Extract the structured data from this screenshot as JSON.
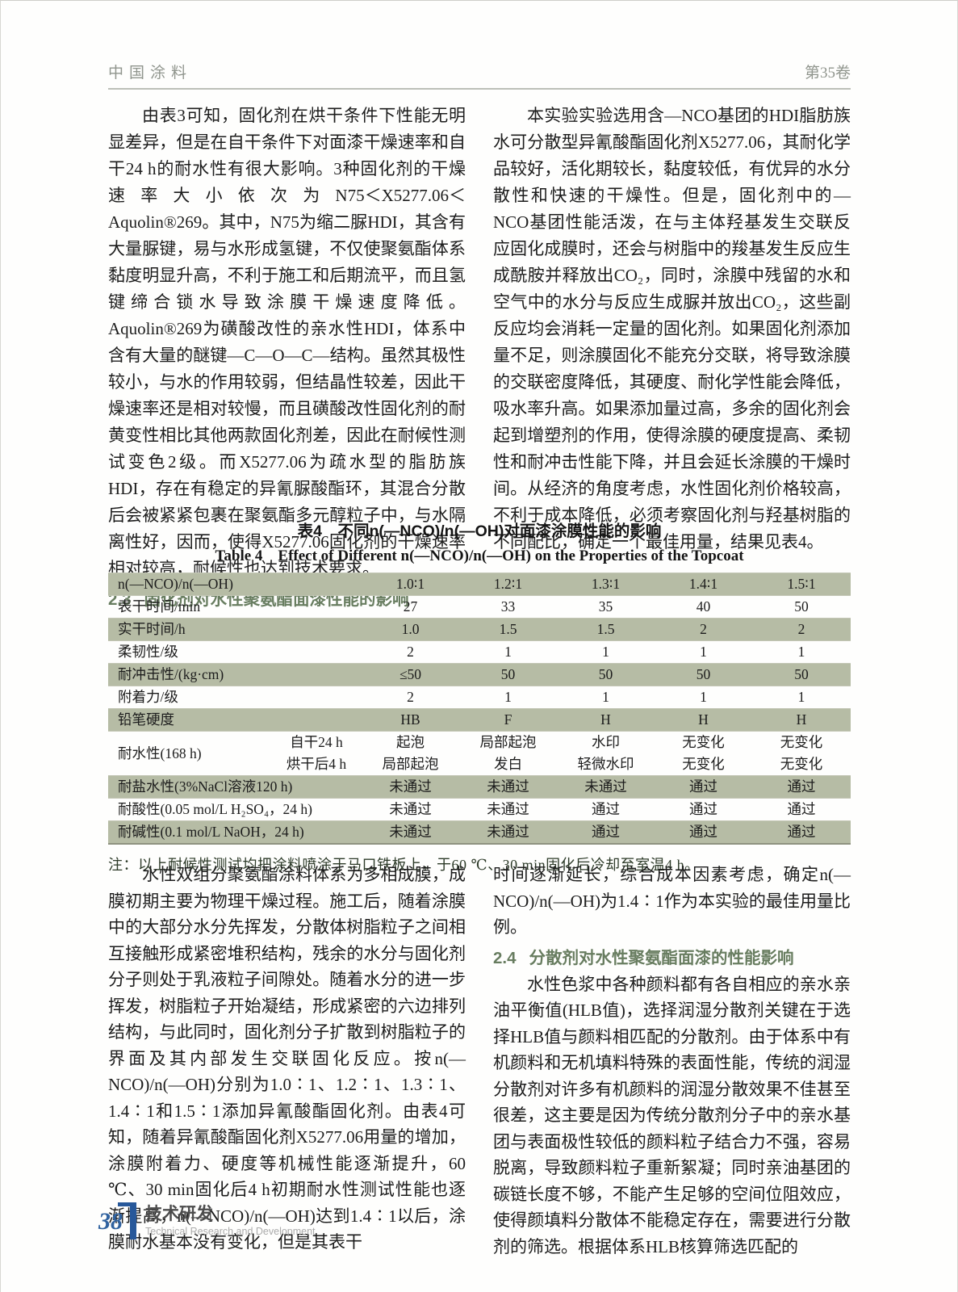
{
  "header": {
    "journal": "中国涂料",
    "volume": "第35卷"
  },
  "top_left": {
    "para": "由表3可知，固化剂在烘干条件下性能无明显差异，但是在自干条件下对面漆干燥速率和自干24 h的耐水性有很大影响。3种固化剂的干燥速率大小依次为N75＜X5277.06＜Aquolin®269。其中，N75为缩二脲HDI，其含有大量脲键，易与水形成氢键，不仅使聚氨酯体系黏度明显升高，不利于施工和后期流平，而且氢键缔合锁水导致涂膜干燥速度降低。Aquolin®269为磺酸改性的亲水性HDI，体系中含有大量的醚键—C—O—C—结构。虽然其极性较小，与水的作用较弱，但结晶性较差，因此干燥速率还是相对较慢，而且磺酸改性固化剂的耐黄变性相比其他两款固化剂差，因此在耐候性测试变色2级。而X5277.06为疏水型的脂肪族HDI，存在有稳定的异氰脲酸酯环，其混合分散后会被紧紧包裹在聚氨酯多元醇粒子中，与水隔离性好，因而，使得X5277.06固化剂的干燥速率相对较高，耐候性也达到技术要求。"
  },
  "section_2_3": {
    "number": "2.3",
    "title": "固化剂对水性聚氨酯面漆性能的影响"
  },
  "top_right": {
    "para": "本实验实验选用含—NCO基团的HDI脂肪族水可分散型异氰酸酯固化剂X5277.06，其耐化学品较好，活化期较长，黏度较低，有优异的水分散性和快速的干燥性。但是，固化剂中的—NCO基团性能活泼，在与主体羟基发生交联反应固化成膜时，还会与树脂中的羧基发生反应生成酰胺并释放出CO₂，同时，涂膜中残留的水和空气中的水分与反应生成脲并放出CO₂，这些副反应均会消耗一定量的固化剂。如果固化剂添加量不足，则涂膜固化不能充分交联，将导致涂膜的交联密度降低，其硬度、耐化学性能会降低，吸水率升高。如果添加量过高，多余的固化剂会起到增塑剂的作用，使得涂膜的硬度提高、柔韧性和耐冲击性能下降，并且会延长涂膜的干燥时间。从经济的角度考虑，水性固化剂价格较高，不利于成本降低，必须考察固化剂与羟基树脂的不同配比，确定一个最佳用量，结果见表4。"
  },
  "table4": {
    "title_zh": "表4　不同n(—NCO)/n(—OH)对面漆涂膜性能的影响",
    "title_en": "Table 4　Effect of Different n(—NCO)/n(—OH) on the Properties of the Topcoat",
    "columns": [
      "n(—NCO)/n(—OH)",
      "1.0∶1",
      "1.2∶1",
      "1.3∶1",
      "1.4∶1",
      "1.5∶1"
    ],
    "rows": [
      {
        "label": "表干时间/min",
        "values": [
          "27",
          "33",
          "35",
          "40",
          "50"
        ],
        "shaded": false
      },
      {
        "label": "实干时间/h",
        "values": [
          "1.0",
          "1.5",
          "1.5",
          "2",
          "2"
        ],
        "shaded": true
      },
      {
        "label": "柔韧性/级",
        "values": [
          "2",
          "1",
          "1",
          "1",
          "1"
        ],
        "shaded": false
      },
      {
        "label": "耐冲击性/(kg·cm)",
        "values": [
          "≤50",
          "50",
          "50",
          "50",
          "50"
        ],
        "shaded": true
      },
      {
        "label": "附着力/级",
        "values": [
          "2",
          "1",
          "1",
          "1",
          "1"
        ],
        "shaded": false
      },
      {
        "label": "铅笔硬度",
        "values": [
          "HB",
          "F",
          "H",
          "H",
          "H"
        ],
        "shaded": true
      },
      {
        "label": "耐水性(168 h)",
        "shaded": false,
        "subrows": [
          {
            "sublabel": "自干24 h",
            "values": [
              "起泡",
              "局部起泡",
              "水印",
              "无变化",
              "无变化"
            ]
          },
          {
            "sublabel": "烘干后4 h",
            "values": [
              "局部起泡",
              "发白",
              "轻微水印",
              "无变化",
              "无变化"
            ]
          }
        ]
      },
      {
        "label": "耐盐水性(3%NaCl溶液120 h)",
        "values": [
          "未通过",
          "未通过",
          "未通过",
          "通过",
          "通过"
        ],
        "shaded": true
      },
      {
        "label": "耐酸性(0.05 mol/L H₂SO₄，24 h)",
        "values": [
          "未通过",
          "未通过",
          "通过",
          "通过",
          "通过"
        ],
        "shaded": false
      },
      {
        "label": "耐碱性(0.1 mol/L NaOH，24 h)",
        "values": [
          "未通过",
          "未通过",
          "通过",
          "通过",
          "通过"
        ],
        "shaded": true
      }
    ],
    "note": "注：以上耐候性测试均把涂料喷涂于马口铁板上，于60 ℃、30 min固化后冷却至室温4 h。"
  },
  "bottom_left": {
    "para": "水性双组分聚氨酯涂料体系为多相成膜，成膜初期主要为物理干燥过程。施工后，随着涂膜中的大部分水分先挥发，分散体树脂粒子之间相互接触形成紧密堆积结构，残余的水分与固化剂分子则处于乳液粒子间隙处。随着水分的进一步挥发，树脂粒子开始凝结，形成紧密的六边排列结构，与此同时，固化剂分子扩散到树脂粒子的界面及其内部发生交联固化反应。按n(—NCO)/n(—OH)分别为1.0∶1、1.2∶1、1.3∶1、1.4∶1和1.5∶1添加异氰酸酯固化剂。由表4可知，随着异氰酸酯固化剂X5277.06用量的增加，涂膜附着力、硬度等机械性能逐渐提升，60 ℃、30 min固化后4 h初期耐水性测试性能也逐渐提高，n(—NCO)/n(—OH)达到1.4∶1以后，涂膜耐水基本没有变化，但是其表干"
  },
  "bottom_right": {
    "para1": "时间逐渐延长，综合成本因素考虑，确定n(—NCO)/n(—OH)为1.4∶1作为本实验的最佳用量比例。",
    "para2": "水性色浆中各种颜料都有各自相应的亲水亲油平衡值(HLB值)，选择润湿分散剂关键在于选择HLB值与颜料相匹配的分散剂。由于体系中有机颜料和无机填料特殊的表面性能，传统的润湿分散剂对许多有机颜料的润湿分散效果不佳甚至很差，这主要是因为传统分散剂分子中的亲水基团与表面极性较低的颜料粒子结合力不强，容易脱离，导致颜料粒子重新絮凝；同时亲油基团的碳链长度不够，不能产生足够的空间位阻效应，使得颜填料分散体不能稳定存在，需要进行分散剂的筛选。根据体系HLB核算筛选匹配的"
  },
  "section_2_4": {
    "number": "2.4",
    "title": "分散剂对水性聚氨酯面漆的性能影响"
  },
  "footer": {
    "page_number": "38",
    "section_zh": "技术研发",
    "section_en": "Technical Research and Development"
  },
  "colors": {
    "table_shade": "#b6bca5",
    "heading_green": "#687d60",
    "footer_blue": "#27589a"
  }
}
